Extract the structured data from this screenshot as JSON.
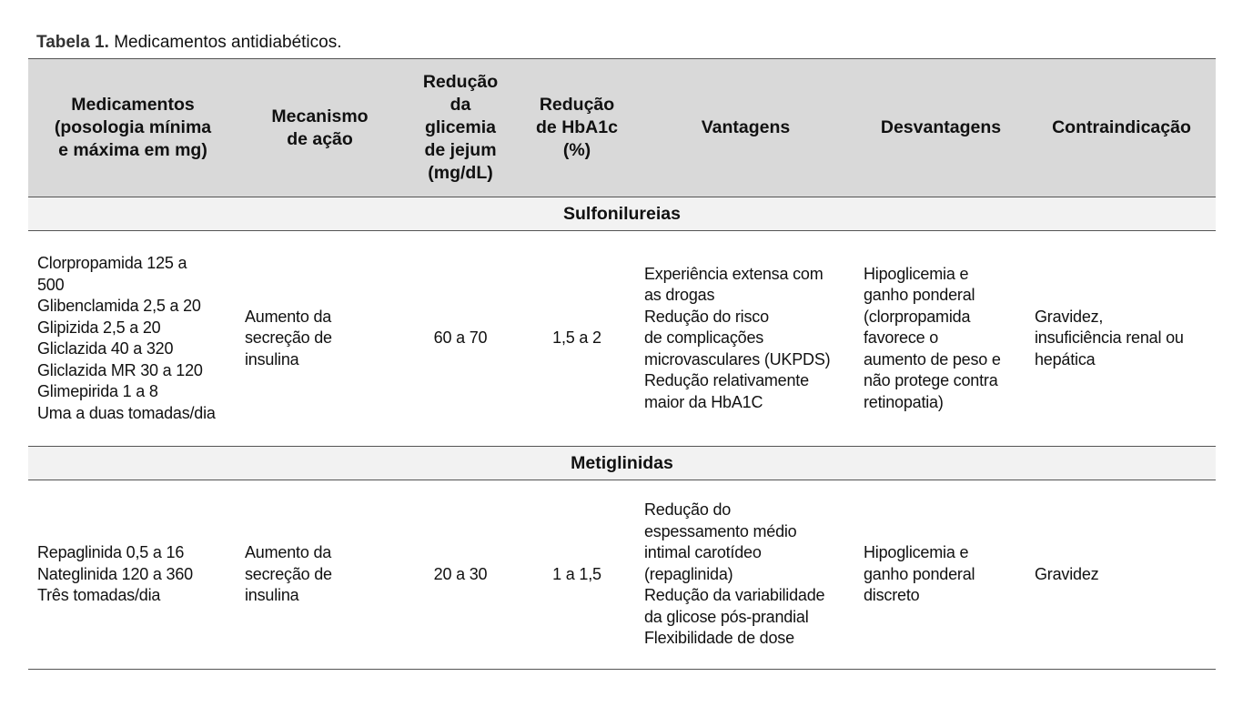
{
  "caption": {
    "label": "Tabela 1.",
    "text": "Medicamentos antidiabéticos."
  },
  "headers": [
    [
      "Medicamentos",
      "(posologia mínima",
      "e máxima em mg)"
    ],
    [
      "Mecanismo",
      "de ação"
    ],
    [
      "Redução",
      "da",
      "glicemia",
      "de jejum",
      "(mg/dL)"
    ],
    [
      "Redução",
      "de HbA1c",
      "(%)"
    ],
    [
      "Vantagens"
    ],
    [
      "Desvantagens"
    ],
    [
      "Contraindicação"
    ]
  ],
  "sections": [
    {
      "title": "Sulfonilureias",
      "row": {
        "medicamentos": [
          "Clorpropamida 125 a",
          "500",
          "Glibenclamida 2,5 a 20",
          "Glipizida 2,5 a 20",
          "Gliclazida 40 a 320",
          "Gliclazida MR 30 a 120",
          "Glimepirida 1 a 8",
          "Uma a duas tomadas/dia"
        ],
        "mecanismo": [
          "Aumento da",
          "secreção de",
          "insulina"
        ],
        "reducao_glicemia": "60 a 70",
        "reducao_hba1c": "1,5 a 2",
        "vantagens": [
          "Experiência extensa com",
          "as drogas",
          "Redução do risco",
          "de complicações",
          "microvasculares (UKPDS)",
          "Redução relativamente",
          "maior da HbA1C"
        ],
        "desvantagens": [
          "Hipoglicemia e",
          "ganho ponderal",
          "(clorpropamida",
          "favorece o",
          "aumento de peso e",
          "não protege contra",
          "retinopatia)"
        ],
        "contraindicacao": [
          "Gravidez,",
          "insuficiência renal ou",
          "hepática"
        ]
      }
    },
    {
      "title": "Metiglinidas",
      "row": {
        "medicamentos": [
          "Repaglinida 0,5 a 16",
          "Nateglinida 120 a 360",
          "Três tomadas/dia"
        ],
        "mecanismo": [
          "Aumento da",
          "secreção de",
          "insulina"
        ],
        "reducao_glicemia": "20 a 30",
        "reducao_hba1c": "1 a 1,5",
        "vantagens": [
          "Redução do",
          "espessamento médio",
          "intimal carotídeo",
          "(repaglinida)",
          "Redução da variabilidade",
          "da glicose pós-prandial",
          "Flexibilidade de dose"
        ],
        "desvantagens": [
          "Hipoglicemia e",
          "ganho ponderal",
          "discreto"
        ],
        "contraindicacao": [
          "Gravidez"
        ]
      }
    }
  ]
}
